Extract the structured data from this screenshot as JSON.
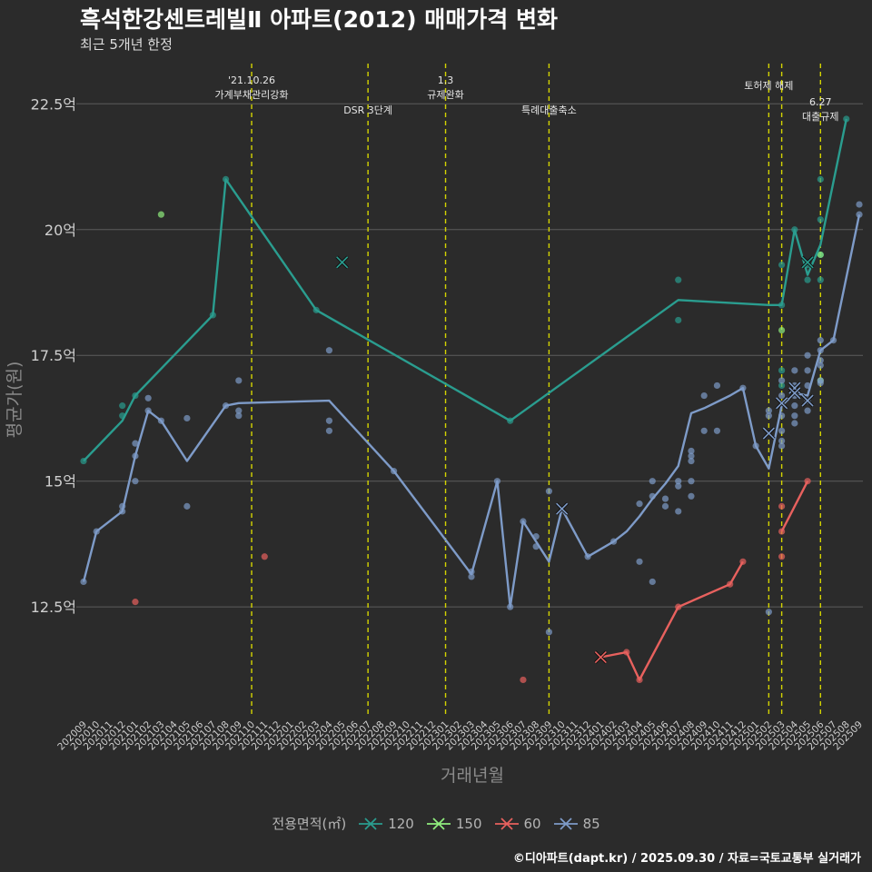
{
  "title": "흑석한강센트레빌Ⅱ 아파트(2012) 매매가격 변화",
  "subtitle": "최근 5개년 한정",
  "caption": "©디아파트(dapt.kr) / 2025.09.30 / 자료=국토교통부 실거래가",
  "legend": {
    "title": "전용면적(㎡)",
    "items": [
      {
        "label": "120",
        "color": "#2a9d8f"
      },
      {
        "label": "150",
        "color": "#90ee7e"
      },
      {
        "label": "60",
        "color": "#e8615e"
      },
      {
        "label": "85",
        "color": "#7e9bc8"
      }
    ]
  },
  "chart_data": {
    "type": "line",
    "xlabel": "거래년월",
    "ylabel": "평균가(원)",
    "ylim": [
      10.3,
      23.3
    ],
    "y_ticks": [
      {
        "value": 12.5,
        "label": "12.5억"
      },
      {
        "value": 15,
        "label": "15억"
      },
      {
        "value": 17.5,
        "label": "17.5억"
      },
      {
        "value": 20,
        "label": "20억"
      },
      {
        "value": 22.5,
        "label": "22.5억"
      }
    ],
    "categories": [
      "202009",
      "202010",
      "202011",
      "202012",
      "202101",
      "202102",
      "202103",
      "202104",
      "202105",
      "202106",
      "202107",
      "202108",
      "202109",
      "202110",
      "202111",
      "202112",
      "202201",
      "202202",
      "202203",
      "202204",
      "202205",
      "202206",
      "202207",
      "202208",
      "202209",
      "202210",
      "202211",
      "202212",
      "202301",
      "202302",
      "202303",
      "202304",
      "202305",
      "202306",
      "202307",
      "202308",
      "202309",
      "202310",
      "202311",
      "202312",
      "202401",
      "202402",
      "202403",
      "202404",
      "202405",
      "202406",
      "202407",
      "202408",
      "202409",
      "202410",
      "202411",
      "202412",
      "202501",
      "202502",
      "202503",
      "202504",
      "202505",
      "202506",
      "202507",
      "202508",
      "202509"
    ],
    "events": [
      {
        "x": 13,
        "lines": [
          "'21.10.26",
          "가계부채관리강화"
        ],
        "level": 1
      },
      {
        "x": 22,
        "lines": [
          "DSR 3단계"
        ],
        "level": 2
      },
      {
        "x": 28,
        "lines": [
          "1.3",
          "규제완화"
        ],
        "level": 1
      },
      {
        "x": 36,
        "lines": [
          "특례대출축소"
        ],
        "level": 2
      },
      {
        "x": 53,
        "lines": [
          "토허제 해제"
        ],
        "level": 0
      },
      {
        "x": 54,
        "lines": [],
        "level": 0
      },
      {
        "x": 57,
        "lines": [
          "6.27",
          "대출규제"
        ],
        "level": 3
      }
    ],
    "series": [
      {
        "name": "120",
        "color": "#2a9d8f",
        "line": [
          [
            0,
            15.4
          ],
          [
            3,
            16.2
          ],
          [
            4,
            16.7
          ],
          [
            10,
            18.3
          ],
          [
            11,
            21.0
          ],
          [
            18,
            18.4
          ],
          [
            33,
            16.2
          ],
          [
            46,
            18.6
          ],
          [
            53,
            18.5
          ],
          [
            54,
            18.5
          ],
          [
            55,
            20.0
          ],
          [
            56,
            19.1
          ],
          [
            57,
            19.7
          ],
          [
            59,
            22.2
          ]
        ],
        "points": [
          [
            0,
            15.4
          ],
          [
            3,
            16.5
          ],
          [
            3,
            16.3
          ],
          [
            4,
            16.7
          ],
          [
            10,
            18.3
          ],
          [
            11,
            21.0
          ],
          [
            18,
            18.4
          ],
          [
            33,
            16.2
          ],
          [
            46,
            19.0
          ],
          [
            46,
            18.2
          ],
          [
            54,
            19.3
          ],
          [
            54,
            18.5
          ],
          [
            54,
            17.2
          ],
          [
            54,
            16.9
          ],
          [
            55,
            20.0
          ],
          [
            56,
            19.3
          ],
          [
            56,
            19.0
          ],
          [
            57,
            21.0
          ],
          [
            57,
            20.2
          ],
          [
            57,
            19.5
          ],
          [
            57,
            19.0
          ],
          [
            59,
            22.2
          ]
        ],
        "crosses": [
          [
            20,
            19.35
          ],
          [
            56,
            19.35
          ]
        ]
      },
      {
        "name": "150",
        "color": "#90ee7e",
        "line": [],
        "points": [
          [
            6,
            20.3
          ],
          [
            54,
            18.0
          ],
          [
            57,
            19.5
          ],
          [
            57,
            17.0
          ]
        ],
        "crosses": []
      },
      {
        "name": "60",
        "color": "#e8615e",
        "line": [
          [
            40,
            11.5
          ],
          [
            42,
            11.6
          ],
          [
            43,
            11.05
          ],
          [
            46,
            12.5
          ],
          [
            50,
            12.95
          ],
          [
            51,
            13.4
          ]
        ],
        "points": [
          [
            4,
            12.6
          ],
          [
            14,
            13.5
          ],
          [
            34,
            11.05
          ],
          [
            42,
            11.6
          ],
          [
            43,
            11.05
          ],
          [
            46,
            12.5
          ],
          [
            50,
            12.95
          ],
          [
            51,
            13.4
          ],
          [
            54,
            14.5
          ],
          [
            54,
            14.0
          ],
          [
            54,
            13.5
          ],
          [
            56,
            15.0
          ]
        ],
        "crosses": [
          [
            40,
            11.5
          ]
        ],
        "line2": [
          [
            54,
            14.0
          ],
          [
            56,
            15.0
          ]
        ]
      },
      {
        "name": "85",
        "color": "#7e9bc8",
        "line": [
          [
            0,
            13.0
          ],
          [
            1,
            14.0
          ],
          [
            3,
            14.4
          ],
          [
            4,
            15.5
          ],
          [
            5,
            16.4
          ],
          [
            6,
            16.2
          ],
          [
            8,
            15.4
          ],
          [
            11,
            16.5
          ],
          [
            12,
            16.55
          ],
          [
            19,
            16.6
          ],
          [
            24,
            15.2
          ],
          [
            30,
            13.15
          ],
          [
            32,
            15.0
          ],
          [
            33,
            12.5
          ],
          [
            34,
            14.2
          ],
          [
            36,
            13.4
          ],
          [
            37,
            14.45
          ],
          [
            39,
            13.5
          ],
          [
            41,
            13.8
          ],
          [
            42,
            14.0
          ],
          [
            43,
            14.3
          ],
          [
            44,
            14.65
          ],
          [
            45,
            14.95
          ],
          [
            46,
            15.3
          ],
          [
            47,
            16.35
          ],
          [
            48,
            16.45
          ],
          [
            50,
            16.7
          ],
          [
            51,
            16.85
          ],
          [
            52,
            15.7
          ],
          [
            53,
            15.25
          ],
          [
            54,
            16.5
          ],
          [
            55,
            16.75
          ],
          [
            56,
            16.7
          ],
          [
            57,
            17.6
          ],
          [
            58,
            17.8
          ],
          [
            60,
            20.3
          ]
        ],
        "points": [
          [
            0,
            13.0
          ],
          [
            1,
            14.0
          ],
          [
            3,
            14.5
          ],
          [
            3,
            14.4
          ],
          [
            4,
            15.75
          ],
          [
            4,
            15.5
          ],
          [
            4,
            15.0
          ],
          [
            5,
            16.65
          ],
          [
            5,
            16.4
          ],
          [
            6,
            16.2
          ],
          [
            8,
            16.25
          ],
          [
            8,
            14.5
          ],
          [
            11,
            16.5
          ],
          [
            12,
            17.0
          ],
          [
            12,
            16.4
          ],
          [
            12,
            16.3
          ],
          [
            19,
            17.6
          ],
          [
            19,
            16.2
          ],
          [
            19,
            16.0
          ],
          [
            24,
            15.2
          ],
          [
            30,
            13.2
          ],
          [
            30,
            13.1
          ],
          [
            32,
            15.0
          ],
          [
            33,
            12.5
          ],
          [
            34,
            14.2
          ],
          [
            35,
            13.9
          ],
          [
            35,
            13.7
          ],
          [
            36,
            14.8
          ],
          [
            36,
            12.0
          ],
          [
            39,
            13.5
          ],
          [
            41,
            13.8
          ],
          [
            43,
            14.55
          ],
          [
            43,
            13.4
          ],
          [
            44,
            15.0
          ],
          [
            44,
            14.7
          ],
          [
            44,
            13.0
          ],
          [
            45,
            14.65
          ],
          [
            45,
            14.5
          ],
          [
            46,
            15.0
          ],
          [
            46,
            14.9
          ],
          [
            46,
            14.4
          ],
          [
            47,
            15.6
          ],
          [
            47,
            15.5
          ],
          [
            47,
            15.4
          ],
          [
            47,
            15.0
          ],
          [
            47,
            14.7
          ],
          [
            48,
            16.7
          ],
          [
            48,
            16.0
          ],
          [
            49,
            16.9
          ],
          [
            49,
            16.0
          ],
          [
            51,
            16.85
          ],
          [
            52,
            15.7
          ],
          [
            53,
            16.4
          ],
          [
            53,
            16.3
          ],
          [
            53,
            12.4
          ],
          [
            54,
            17.0
          ],
          [
            54,
            16.7
          ],
          [
            54,
            16.3
          ],
          [
            54,
            16.0
          ],
          [
            54,
            15.8
          ],
          [
            54,
            15.7
          ],
          [
            55,
            17.2
          ],
          [
            55,
            16.9
          ],
          [
            55,
            16.7
          ],
          [
            55,
            16.5
          ],
          [
            55,
            16.3
          ],
          [
            55,
            16.15
          ],
          [
            56,
            17.5
          ],
          [
            56,
            17.2
          ],
          [
            56,
            16.9
          ],
          [
            56,
            16.6
          ],
          [
            56,
            16.4
          ],
          [
            57,
            17.8
          ],
          [
            57,
            17.6
          ],
          [
            57,
            17.4
          ],
          [
            57,
            17.3
          ],
          [
            57,
            17.0
          ],
          [
            57,
            16.95
          ],
          [
            58,
            17.8
          ],
          [
            60,
            20.5
          ],
          [
            60,
            20.3
          ]
        ],
        "crosses": [
          [
            37,
            14.45
          ],
          [
            53,
            15.95
          ],
          [
            54,
            16.55
          ],
          [
            55,
            16.85
          ],
          [
            55,
            16.75
          ],
          [
            56,
            16.6
          ]
        ]
      }
    ]
  }
}
